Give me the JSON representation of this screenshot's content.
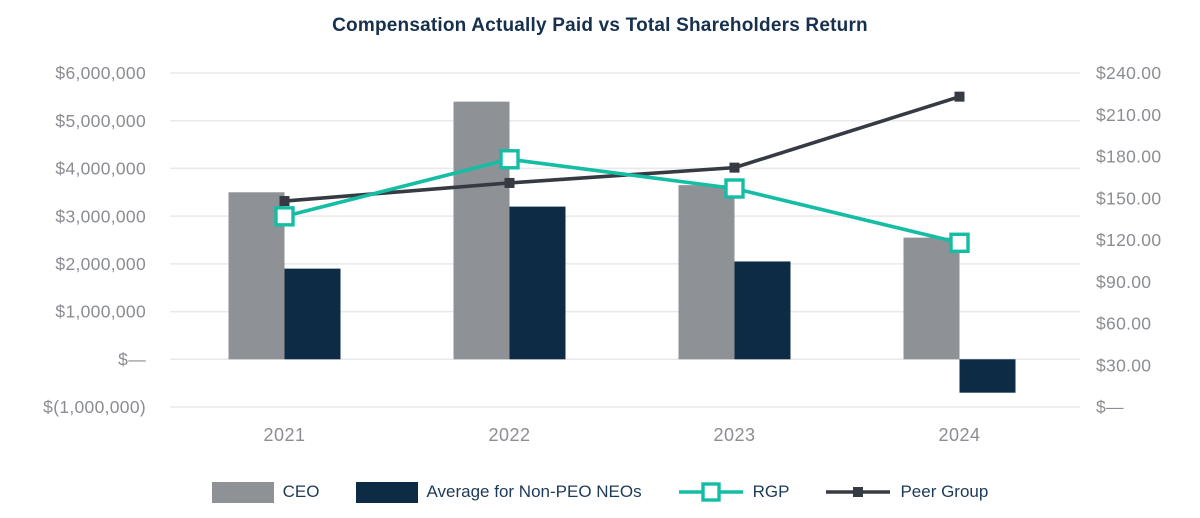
{
  "title": "Compensation Actually Paid vs Total Shareholders Return",
  "colors": {
    "background": "#FFFFFF",
    "title_text": "#16304E",
    "legend_text": "#1C3A58",
    "axis_text": "#8A8D91",
    "grid_line": "#E8E9EB",
    "ceo_bar": "#8E9195",
    "neo_bar": "#0D2B45",
    "rgp_line": "#15BDA4",
    "peer_line": "#363A43"
  },
  "legend": [
    {
      "label": "CEO",
      "swatch": "bar",
      "color_key": "ceo_bar"
    },
    {
      "label": "Average for Non-PEO NEOs",
      "swatch": "bar",
      "color_key": "neo_bar"
    },
    {
      "label": "RGP",
      "swatch": "line-open-square",
      "color_key": "rgp_line"
    },
    {
      "label": "Peer Group",
      "swatch": "line-filled-square",
      "color_key": "peer_line"
    }
  ],
  "chart_data": {
    "type": "combo-bar-line",
    "title": "Compensation Actually Paid vs Total Shareholders Return",
    "categories": [
      "2021",
      "2022",
      "2023",
      "2024"
    ],
    "series": [
      {
        "name": "CEO",
        "type": "bar",
        "axis": "left",
        "color_key": "ceo_bar",
        "values": [
          3500000,
          5400000,
          3650000,
          2550000
        ]
      },
      {
        "name": "Average for Non-PEO NEOs",
        "type": "bar",
        "axis": "left",
        "color_key": "neo_bar",
        "values": [
          1900000,
          3200000,
          2050000,
          -700000
        ]
      },
      {
        "name": "RGP",
        "type": "line",
        "axis": "right",
        "marker": "open-square",
        "color_key": "rgp_line",
        "values": [
          137,
          178,
          157,
          118
        ]
      },
      {
        "name": "Peer Group",
        "type": "line",
        "axis": "right",
        "marker": "filled-square",
        "color_key": "peer_line",
        "values": [
          148,
          161,
          172,
          223
        ]
      }
    ],
    "left_axis": {
      "min": -1000000,
      "max": 6000000,
      "ticks": [
        "$6,000,000",
        "$5,000,000",
        "$4,000,000",
        "$3,000,000",
        "$2,000,000",
        "$1,000,000",
        "$—",
        "$(1,000,000)"
      ]
    },
    "right_axis": {
      "min": 0,
      "max": 240,
      "ticks": [
        "$240.00",
        "$210.00",
        "$180.00",
        "$150.00",
        "$120.00",
        "$90.00",
        "$60.00",
        "$30.00",
        "$—"
      ]
    },
    "grid": "horizontal",
    "legend_position": "bottom"
  }
}
